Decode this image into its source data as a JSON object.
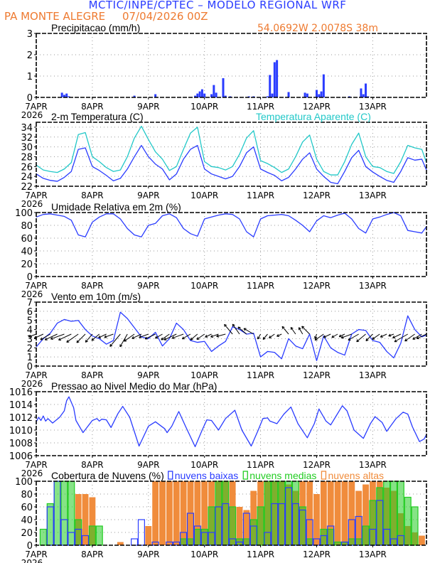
{
  "header": {
    "title": "MCTIC/INPE/CPTEC – MODELO REGIONAL WRF",
    "station": "PA MONTE ALEGRE     07/04/2026 00Z",
    "coordinates": "54.0692W 2.0078S 38m"
  },
  "x_axis": {
    "hours_range": [
      0,
      167
    ],
    "day_labels": [
      "7APR",
      "8APR",
      "9APR",
      "10APR",
      "11APR",
      "12APR",
      "13APR"
    ],
    "year_label": "2026"
  },
  "colors": {
    "blue": "#2a3cff",
    "cyan": "#22c8c8",
    "green": "#22cc22",
    "orange": "#f08c3c",
    "text_orange": "#ee7a30"
  },
  "chart_data": [
    {
      "id": "precip",
      "type": "bar",
      "title": "Precipitacao (mm/h)",
      "ylim": [
        0,
        3
      ],
      "yticks": [
        0,
        1,
        2,
        3
      ],
      "series": [
        {
          "name": "precipitacao",
          "points": [
            [
              11,
              0.22
            ],
            [
              12,
              0.12
            ],
            [
              13,
              0.18
            ],
            [
              14,
              0.05
            ],
            [
              42,
              0.08
            ],
            [
              51,
              0.15
            ],
            [
              68,
              0.08
            ],
            [
              69,
              0.18
            ],
            [
              70,
              0.28
            ],
            [
              71,
              0.38
            ],
            [
              72,
              0.18
            ],
            [
              75,
              0.15
            ],
            [
              76,
              0.58
            ],
            [
              77,
              0.22
            ],
            [
              80,
              0.9
            ],
            [
              81,
              0.08
            ],
            [
              83,
              0.05
            ],
            [
              91,
              0.05
            ],
            [
              93,
              0.05
            ],
            [
              99,
              0.05
            ],
            [
              100,
              1.05
            ],
            [
              101,
              0.18
            ],
            [
              102,
              1.65
            ],
            [
              103,
              1.75
            ],
            [
              108,
              0.25
            ],
            [
              115,
              0.22
            ],
            [
              116,
              0.18
            ],
            [
              120,
              0.35
            ],
            [
              121,
              0.15
            ],
            [
              122,
              0.28
            ],
            [
              123,
              1.08
            ],
            [
              134,
              0.05
            ],
            [
              139,
              0.42
            ],
            [
              140,
              0.15
            ],
            [
              141,
              0.65
            ],
            [
              142,
              0.05
            ]
          ]
        }
      ]
    },
    {
      "id": "temp",
      "type": "line",
      "title": "2-m Temperatura (C)",
      "title2": "Temperatura Aparente (C)",
      "ylim": [
        22,
        35
      ],
      "yticks": [
        22,
        24,
        26,
        28,
        30,
        32,
        34
      ],
      "step_h": 3,
      "series": [
        {
          "name": "Temperatura 2m",
          "values": [
            24.5,
            23.6,
            23.2,
            23.0,
            23.8,
            25.0,
            29.5,
            29.8,
            26.0,
            25.2,
            24.2,
            23.1,
            23.6,
            25.5,
            28.0,
            30.3,
            28.0,
            26.5,
            25.5,
            23.3,
            24.5,
            27.5,
            29.5,
            30.3,
            25.5,
            24.5,
            24.0,
            23.5,
            24.0,
            26.0,
            28.8,
            30.0,
            25.5,
            24.8,
            24.2,
            23.1,
            23.8,
            25.5,
            27.5,
            28.8,
            25.5,
            24.0,
            22.8,
            22.5,
            25.0,
            27.8,
            29.3,
            26.0,
            24.9,
            24.0,
            23.2,
            22.8,
            25.0,
            27.8,
            27.3,
            27.5,
            25.3
          ]
        },
        {
          "name": "Temperatura Aparente",
          "values": [
            26.3,
            25.3,
            25.0,
            24.8,
            25.5,
            26.8,
            32.5,
            32.9,
            28.0,
            27.0,
            25.8,
            25.0,
            25.3,
            28.0,
            31.8,
            34.2,
            31.5,
            29.0,
            27.5,
            25.2,
            26.0,
            29.5,
            32.8,
            34.0,
            27.0,
            26.0,
            25.8,
            25.3,
            26.0,
            28.5,
            31.8,
            33.3,
            27.2,
            26.6,
            25.8,
            24.8,
            25.5,
            28.0,
            31.0,
            32.4,
            27.5,
            25.0,
            24.3,
            24.3,
            27.0,
            30.5,
            32.8,
            28.0,
            26.0,
            25.8,
            25.0,
            24.6,
            27.0,
            30.3,
            29.8,
            29.5,
            26.8
          ]
        }
      ]
    },
    {
      "id": "rh",
      "type": "line",
      "title": "Umidade Relativa em 2m (%)",
      "ylim": [
        0,
        100
      ],
      "yticks": [
        0,
        20,
        40,
        60,
        80,
        100
      ],
      "step_h": 3,
      "series": [
        {
          "name": "Umidade Relativa",
          "values": [
            93,
            97,
            98,
            96,
            94,
            88,
            65,
            62,
            85,
            93,
            98,
            98,
            90,
            75,
            65,
            62,
            80,
            83,
            95,
            98,
            92,
            75,
            67,
            63,
            90,
            93,
            96,
            98,
            97,
            90,
            70,
            62,
            90,
            95,
            96,
            97,
            95,
            88,
            80,
            70,
            87,
            95,
            92,
            96,
            99,
            90,
            75,
            68,
            90,
            93,
            97,
            100,
            95,
            72,
            70,
            68,
            78
          ]
        }
      ]
    },
    {
      "id": "wind",
      "type": "line",
      "title": "Vento em 10m (m/s)",
      "ylim": [
        0,
        7
      ],
      "yticks": [
        0,
        1,
        2,
        3,
        4,
        5,
        6,
        7
      ],
      "step_h": 3,
      "series": [
        {
          "name": "Velocidade",
          "values": [
            2.1,
            3.0,
            3.6,
            4.7,
            5.1,
            4.9,
            5.0,
            4.0,
            3.3,
            3.0,
            2.4,
            2.8,
            5.9,
            5.2,
            4.2,
            3.2,
            3.0,
            3.7,
            2.2,
            3.0,
            4.7,
            4.0,
            2.8,
            2.6,
            2.7,
            1.6,
            2.2,
            2.7,
            4.3,
            4.0,
            3.5,
            3.6,
            1.0,
            1.6,
            1.5,
            0.8,
            3.0,
            2.2,
            1.9,
            3.5,
            0.6,
            3.3,
            2.0,
            1.5,
            1.2,
            3.5,
            4.0,
            3.9,
            2.8,
            2.6,
            1.6,
            0.9,
            2.5,
            5.5,
            4.0,
            3.2,
            3.4
          ]
        },
        {
          "name": "Direcao (graus, seta)",
          "values": [
            200,
            205,
            210,
            205,
            200,
            205,
            215,
            225,
            230,
            220,
            205,
            200,
            230,
            240,
            215,
            205,
            200,
            205,
            210,
            215,
            205,
            200,
            210,
            220,
            215,
            205,
            200,
            195,
            130,
            125,
            140,
            150,
            240,
            230,
            215,
            205,
            130,
            125,
            120,
            135,
            250,
            215,
            205,
            210,
            205,
            200,
            210,
            220,
            225,
            215,
            205,
            200,
            205,
            210,
            215,
            210,
            205
          ]
        }
      ]
    },
    {
      "id": "pressure",
      "type": "line",
      "title": "Pressao ao Nivel Medio do Mar (hPa)",
      "ylim": [
        1006,
        1016
      ],
      "yticks": [
        1006,
        1008,
        1010,
        1012,
        1014,
        1016
      ],
      "series": [
        {
          "name": "Pressao",
          "points": [
            [
              0,
              1011.3
            ],
            [
              1,
              1012.0
            ],
            [
              2,
              1011.5
            ],
            [
              3,
              1012.2
            ],
            [
              4,
              1011.4
            ],
            [
              5,
              1011.8
            ],
            [
              7,
              1011.1
            ],
            [
              10,
              1012.0
            ],
            [
              12,
              1013.0
            ],
            [
              13,
              1014.6
            ],
            [
              14,
              1015.2
            ],
            [
              16,
              1013.5
            ],
            [
              17,
              1011.5
            ],
            [
              20,
              1009.6
            ],
            [
              24,
              1011.5
            ],
            [
              26,
              1011.8
            ],
            [
              27,
              1011.4
            ],
            [
              28,
              1011.7
            ],
            [
              30,
              1011.6
            ],
            [
              32,
              1010.4
            ],
            [
              35,
              1012.6
            ],
            [
              37,
              1013.7
            ],
            [
              40,
              1012.0
            ],
            [
              44,
              1007.5
            ],
            [
              48,
              1010.6
            ],
            [
              51,
              1011.3
            ],
            [
              55,
              1010.2
            ],
            [
              56,
              1009.6
            ],
            [
              58,
              1010.6
            ],
            [
              61,
              1012.9
            ],
            [
              64,
              1010.5
            ],
            [
              68,
              1007.4
            ],
            [
              71,
              1010.0
            ],
            [
              73,
              1011.6
            ],
            [
              75,
              1011.5
            ],
            [
              78,
              1010.0
            ],
            [
              81,
              1011.8
            ],
            [
              85,
              1013.1
            ],
            [
              88,
              1010.0
            ],
            [
              92,
              1007.5
            ],
            [
              95,
              1010.0
            ],
            [
              97,
              1011.8
            ],
            [
              99,
              1011.9
            ],
            [
              100,
              1011.4
            ],
            [
              103,
              1011.0
            ],
            [
              106,
              1012.5
            ],
            [
              109,
              1013.6
            ],
            [
              112,
              1011.0
            ],
            [
              116,
              1008.8
            ],
            [
              119,
              1011.0
            ],
            [
              121,
              1013.3
            ],
            [
              124,
              1011.4
            ],
            [
              126,
              1010.8
            ],
            [
              128,
              1012.0
            ],
            [
              131,
              1013.8
            ],
            [
              133,
              1013.0
            ],
            [
              136,
              1010.0
            ],
            [
              140,
              1008.7
            ],
            [
              143,
              1011.0
            ],
            [
              145,
              1012.1
            ],
            [
              148,
              1011.2
            ],
            [
              150,
              1009.8
            ],
            [
              154,
              1011.8
            ],
            [
              157,
              1012.8
            ],
            [
              159,
              1012.5
            ],
            [
              161,
              1010.5
            ],
            [
              164,
              1008.2
            ],
            [
              166,
              1008.6
            ],
            [
              167,
              1009.3
            ]
          ]
        }
      ]
    },
    {
      "id": "clouds",
      "type": "bar",
      "title": "Cobertura de Nuvens (%)",
      "ylim": [
        0,
        100
      ],
      "yticks": [
        0,
        20,
        40,
        60,
        80,
        100
      ],
      "step_h": 3,
      "series": [
        {
          "name": "nuvens altas",
          "values": [
            0,
            0,
            0,
            0,
            0,
            0,
            80,
            80,
            75,
            0,
            0,
            0,
            5,
            0,
            0,
            0,
            30,
            100,
            100,
            100,
            100,
            100,
            100,
            100,
            100,
            100,
            100,
            100,
            100,
            60,
            55,
            85,
            100,
            100,
            100,
            100,
            95,
            85,
            100,
            100,
            80,
            100,
            100,
            100,
            100,
            100,
            85,
            95,
            100,
            100,
            90,
            85,
            50,
            30,
            20,
            15,
            20
          ]
        },
        {
          "name": "nuvens medias",
          "values": [
            0,
            25,
            65,
            100,
            100,
            100,
            40,
            0,
            30,
            30,
            0,
            0,
            0,
            0,
            0,
            0,
            0,
            0,
            0,
            0,
            0,
            10,
            10,
            25,
            25,
            60,
            100,
            100,
            60,
            10,
            10,
            40,
            60,
            100,
            100,
            100,
            100,
            100,
            60,
            10,
            0,
            25,
            25,
            5,
            5,
            10,
            10,
            30,
            70,
            90,
            100,
            100,
            100,
            75,
            60,
            0,
            0
          ]
        },
        {
          "name": "nuvens baixas",
          "values": [
            0,
            0,
            60,
            100,
            40,
            20,
            25,
            15,
            0,
            0,
            0,
            0,
            0,
            0,
            10,
            40,
            0,
            5,
            0,
            5,
            5,
            20,
            50,
            30,
            20,
            20,
            60,
            65,
            10,
            5,
            50,
            30,
            0,
            20,
            65,
            65,
            90,
            65,
            55,
            40,
            10,
            15,
            30,
            0,
            5,
            40,
            45,
            0,
            25,
            70,
            25,
            10,
            15,
            0,
            0,
            0,
            0
          ]
        }
      ]
    }
  ]
}
